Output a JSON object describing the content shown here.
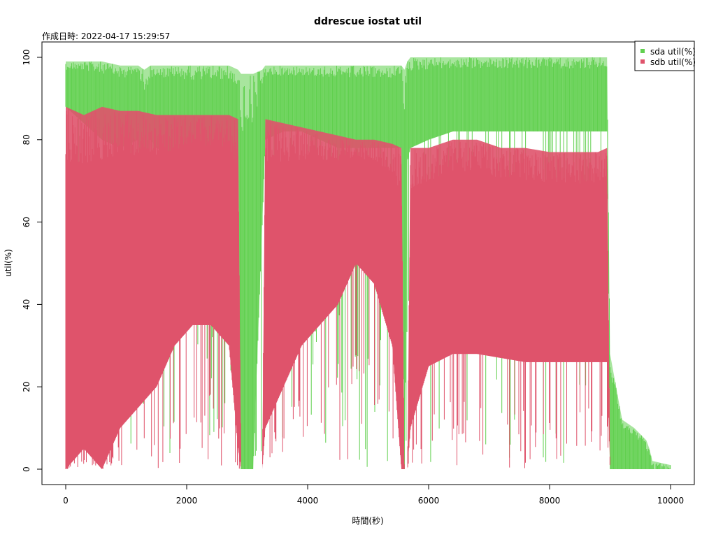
{
  "chart_data": {
    "type": "area",
    "title": "ddrescue iostat util",
    "subtitle": "作成日時: 2022-04-17 15:29:57",
    "xlabel": "時間(秒)",
    "ylabel": "util(%)",
    "xlim": [
      0,
      10000
    ],
    "ylim": [
      0,
      100
    ],
    "xticks": [
      "0",
      "2000",
      "4000",
      "6000",
      "8000",
      "10000"
    ],
    "yticks": [
      "0",
      "20",
      "40",
      "60",
      "80",
      "100"
    ],
    "grid": false,
    "legend": {
      "position": "top-right",
      "entries": [
        "sda util(%)",
        "sdb util(%)"
      ]
    },
    "series": [
      {
        "name": "sda util(%)",
        "color": "#61d04f",
        "x": [
          0,
          300,
          600,
          900,
          1200,
          1300,
          1400,
          1500,
          1800,
          2100,
          2400,
          2700,
          2850,
          2900,
          3100,
          3250,
          3300,
          3600,
          3900,
          4200,
          4500,
          4800,
          5100,
          5400,
          5550,
          5600,
          5650,
          5700,
          6000,
          6400,
          6800,
          7200,
          7600,
          8000,
          8400,
          8800,
          8950,
          9000,
          9100,
          9200,
          9400,
          9600,
          9650,
          9700,
          10000
        ],
        "values": [
          99,
          99,
          99,
          98,
          98,
          97,
          98,
          98,
          98,
          98,
          98,
          98,
          97,
          96,
          96,
          97,
          98,
          98,
          98,
          98,
          98,
          98,
          98,
          98,
          98,
          97,
          99,
          100,
          100,
          100,
          100,
          100,
          100,
          100,
          100,
          100,
          100,
          28,
          20,
          12,
          10,
          7,
          5,
          2,
          1
        ],
        "floor": [
          88,
          84,
          80,
          78,
          80,
          50,
          80,
          78,
          76,
          75,
          76,
          74,
          72,
          0,
          0,
          60,
          80,
          82,
          82,
          80,
          78,
          78,
          78,
          78,
          78,
          0,
          75,
          78,
          80,
          82,
          82,
          82,
          82,
          82,
          82,
          82,
          82,
          0,
          0,
          0,
          0,
          0,
          0,
          0,
          0
        ]
      },
      {
        "name": "sdb util(%)",
        "color": "#df536b",
        "x": [
          0,
          300,
          600,
          900,
          1200,
          1500,
          1800,
          2100,
          2400,
          2700,
          2850,
          2900,
          3250,
          3300,
          3600,
          3900,
          4200,
          4500,
          4800,
          5100,
          5400,
          5550,
          5600,
          5650,
          5700,
          6000,
          6400,
          6800,
          7200,
          7600,
          8000,
          8400,
          8800,
          8950,
          9000,
          10000
        ],
        "values": [
          88,
          86,
          88,
          87,
          87,
          86,
          86,
          86,
          86,
          86,
          85,
          0,
          0,
          85,
          84,
          83,
          82,
          81,
          80,
          80,
          79,
          78,
          0,
          0,
          78,
          78,
          80,
          80,
          78,
          78,
          77,
          77,
          77,
          78,
          0,
          0
        ],
        "floor": [
          0,
          5,
          0,
          10,
          15,
          20,
          30,
          35,
          35,
          30,
          5,
          0,
          0,
          10,
          20,
          30,
          35,
          40,
          50,
          45,
          30,
          0,
          0,
          0,
          10,
          25,
          28,
          28,
          27,
          26,
          26,
          26,
          26,
          26,
          0,
          0
        ]
      }
    ]
  }
}
